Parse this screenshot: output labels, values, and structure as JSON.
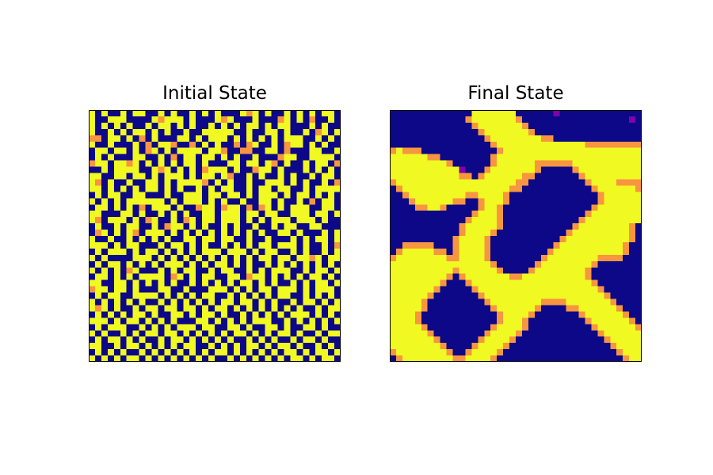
{
  "chart_data": [
    {
      "type": "heatmap",
      "title": "Initial State",
      "colormap": "plasma",
      "grid_size": [
        40,
        40
      ],
      "axes_ticks": "none",
      "levels_description": "four observed levels rendered as dark blue, purple, orange, yellow",
      "palette": [
        "#0d0887",
        "#7e03a8",
        "#f89540",
        "#f0f921"
      ],
      "rows": [
        "3030030330030300303030003230300303030330",
        "3003330000323330300032300030002303020030",
        "3030303003033030300303030330303300030300",
        "3003030330303003003333300300330300302303",
        "2203303020300033030333030303030333003030",
        "3003000302033200203030020230030233030300",
        "0330330302303033330332002200330200033003",
        "0303000330030203303303030030002330033330",
        "2330332303030303303000330330320300303302",
        "0030333300323030302333030023303000303030",
        "3300330330303330303303200303003030030330",
        "3203003003303033332030300300333030300302",
        "3303030303303030030303300303303300303333",
        "0303300330003003330330330303330303303030",
        "3030303333330303330303003003303003020330",
        "0330303020333030023302330202303033300330",
        "3300033030030303003303330330330033303303",
        "3203330302300302303303330303033303330300",
        "0300303300302330303003030030030330033000",
        "0230303203330303030303030303003303000303",
        "3003003030303003303303300300300030303303",
        "3330303300030330303003030303303330300302",
        "0303330303303030303330333030330030300303",
        "3030000333030303030303030303303303323033",
        "0303303030303330303033030300303030303030",
        "3030302300030303300303300303033300303303",
        "0330303033330230303300330233030303033030",
        "3300330303030300303030303303030030303303",
        "2330330300033003000333030303303330303330",
        "0303300333303030303300303030303300303030",
        "3030303030030303030303303303030030330303",
        "3230300303303303303033030303030303003033",
        "0303030330300330303303003030303033303030",
        "3330303303030300033030303033300303030303",
        "0303330030303033303300330300330300330300",
        "3030030303303303030303033030303303003033",
        "0303303030030330303030300303030030330300",
        "3300303303030303300303030330303303003030",
        "0303030030303030303033030303030330303303",
        "3030303303030303030300303030303033030330"
      ]
    },
    {
      "type": "heatmap",
      "title": "Final State",
      "colormap": "plasma",
      "grid_size": [
        40,
        40
      ],
      "axes_ticks": "none",
      "levels_description": "four observed levels rendered as dark blue, purple, orange, yellow",
      "palette": [
        "#0d0887",
        "#7e03a8",
        "#f89540",
        "#f0f921"
      ],
      "rows": [
        "0000000000000333333300000010000000000000",
        "0000000000002333333320000000000000000010",
        "0000000000000233333332000000000000000000",
        "0000000000000023333333200000000000000000",
        "0000000000000002333333332200000000000000",
        "0000000000000000233333333333333222222222",
        "2322200000000000023333333333333333333333",
        "3333332200000000233333333333333333333333",
        "3333333332000000233333322222233333333333",
        "3333333333310002333333320000023333333333",
        "3333333333322023333332200000002333333333",
        "2333333333333333333322000000000233332222",
        "0233333333333333333220000000000023333332",
        "0023333333332233332000000000000002333333",
        "0002333333220023332000000000000002333333",
        "0000223320000023320000000000000023333333",
        "0000000000000233320000000000000233333333",
        "0000000000002333320000000000002333333333",
        "0000000000023333320000000000023333333320",
        "0000000000023333200000000000233333333320",
        "0000000000233332000000000002333333333320",
        "0022222000233332000000000023333333333200",
        "0233333220233332000000000233333333333200",
        "2333333332233332000000002333333332222000",
        "3333333333333333200000023333333320000000",
        "3333333333233333320000233333333200000000",
        "3333333332023333333223333333333200000000",
        "3333333320002333333333333333333320000000",
        "3333333200000233333333333333333332000000",
        "3333332000000023333333333333333333200000",
        "3333320000000002333333332222333333320000",
        "3333320000000000233333320000223333332000",
        "3333200000000000023333200000002333333200",
        "3333200000000000023332000000000233333320",
        "3333320000000000233332000000000023333332",
        "3333332000000002333320000000000002333333",
        "3333333200000023333200000000000000233333",
        "3333333320000233332000000000000000023333",
        "2333333332002333320000000000000000002333",
        "0233333333223333200000000000000000000233"
      ]
    }
  ],
  "colors": {
    "background": "#ffffff",
    "frame": "#000000"
  }
}
